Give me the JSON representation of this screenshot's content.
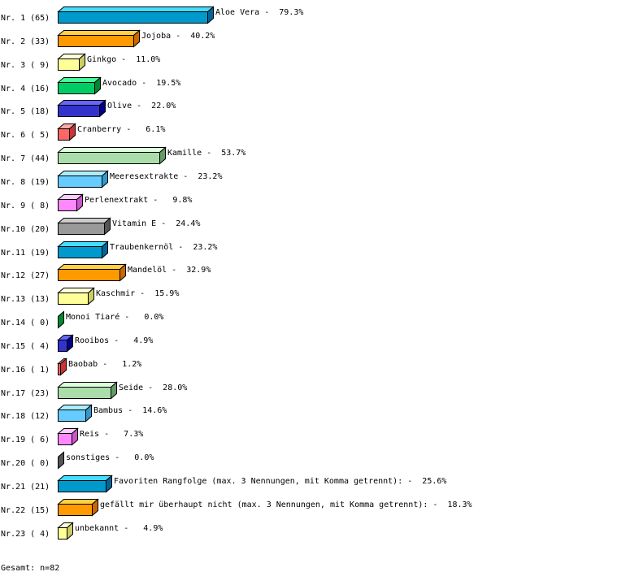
{
  "chart_data": {
    "type": "bar",
    "orientation": "horizontal",
    "style": "3d",
    "unit": "%",
    "xlim": [
      0,
      100
    ],
    "grid": false,
    "rows": [
      {
        "nr": "Nr. 1",
        "count": 65,
        "name": "Aloe Vera",
        "pct": 79.3
      },
      {
        "nr": "Nr. 2",
        "count": 33,
        "name": "Jojoba",
        "pct": 40.2
      },
      {
        "nr": "Nr. 3",
        "count": 9,
        "name": "Ginkgo",
        "pct": 11.0
      },
      {
        "nr": "Nr. 4",
        "count": 16,
        "name": "Avocado",
        "pct": 19.5
      },
      {
        "nr": "Nr. 5",
        "count": 18,
        "name": "Olive",
        "pct": 22.0
      },
      {
        "nr": "Nr. 6",
        "count": 5,
        "name": "Cranberry",
        "pct": 6.1
      },
      {
        "nr": "Nr. 7",
        "count": 44,
        "name": "Kamille",
        "pct": 53.7
      },
      {
        "nr": "Nr. 8",
        "count": 19,
        "name": "Meeresextrakte",
        "pct": 23.2
      },
      {
        "nr": "Nr. 9",
        "count": 8,
        "name": "Perlenextrakt",
        "pct": 9.8
      },
      {
        "nr": "Nr.10",
        "count": 20,
        "name": "Vitamin E",
        "pct": 24.4
      },
      {
        "nr": "Nr.11",
        "count": 19,
        "name": "Traubenkernöl",
        "pct": 23.2
      },
      {
        "nr": "Nr.12",
        "count": 27,
        "name": "Mandelöl",
        "pct": 32.9
      },
      {
        "nr": "Nr.13",
        "count": 13,
        "name": "Kaschmir",
        "pct": 15.9
      },
      {
        "nr": "Nr.14",
        "count": 0,
        "name": "Monoi Tiaré",
        "pct": 0.0
      },
      {
        "nr": "Nr.15",
        "count": 4,
        "name": "Rooibos",
        "pct": 4.9
      },
      {
        "nr": "Nr.16",
        "count": 1,
        "name": "Baobab",
        "pct": 1.2
      },
      {
        "nr": "Nr.17",
        "count": 23,
        "name": "Seide",
        "pct": 28.0
      },
      {
        "nr": "Nr.18",
        "count": 12,
        "name": "Bambus",
        "pct": 14.6
      },
      {
        "nr": "Nr.19",
        "count": 6,
        "name": "Reis",
        "pct": 7.3
      },
      {
        "nr": "Nr.20",
        "count": 0,
        "name": "sonstiges",
        "pct": 0.0
      },
      {
        "nr": "Nr.21",
        "count": 21,
        "name": "Favoriten Rangfolge (max. 3 Nennungen, mit Komma getrennt):",
        "pct": 25.6
      },
      {
        "nr": "Nr.22",
        "count": 15,
        "name": "gefällt mir überhaupt nicht (max. 3 Nennungen, mit Komma getrennt):",
        "pct": 18.3
      },
      {
        "nr": "Nr.23",
        "count": 4,
        "name": "unbekannt",
        "pct": 4.9
      }
    ],
    "palette": [
      {
        "front": "#0099cc",
        "top": "#44ddff",
        "side": "#006699"
      },
      {
        "front": "#ff9900",
        "top": "#ffd040",
        "side": "#cc6600"
      },
      {
        "front": "#ffff99",
        "top": "#ffffdd",
        "side": "#cccc66"
      },
      {
        "front": "#00cc66",
        "top": "#44ff99",
        "side": "#008833"
      },
      {
        "front": "#3333cc",
        "top": "#6666ff",
        "side": "#000088"
      },
      {
        "front": "#ff6666",
        "top": "#ffaaaa",
        "side": "#cc3333"
      },
      {
        "front": "#aaddaa",
        "top": "#ddffdd",
        "side": "#669966"
      },
      {
        "front": "#66ccff",
        "top": "#aaeeff",
        "side": "#3399cc"
      },
      {
        "front": "#ff88ff",
        "top": "#ffccff",
        "side": "#cc55cc"
      },
      {
        "front": "#999999",
        "top": "#cccccc",
        "side": "#555555"
      }
    ]
  },
  "footer": {
    "total": "Gesamt: n=82"
  }
}
